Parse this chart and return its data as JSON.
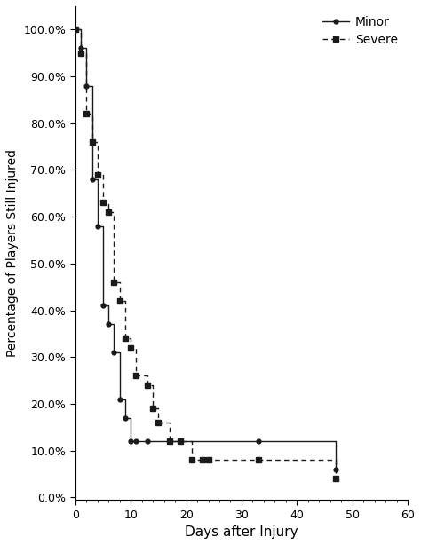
{
  "title": "",
  "xlabel": "Days after Injury",
  "ylabel": "Percentage of Players Still Injured",
  "xlim": [
    0,
    60
  ],
  "ylim": [
    0.0,
    1.05
  ],
  "yticks": [
    0.0,
    0.1,
    0.2,
    0.3,
    0.4,
    0.5,
    0.6,
    0.7,
    0.8,
    0.9,
    1.0
  ],
  "ytick_labels": [
    "0.0%",
    "10.0%",
    "20.0%",
    "30.0%",
    "40.0%",
    "50.0%",
    "60.0%",
    "70.0%",
    "80.0%",
    "90.0%",
    "100.0%"
  ],
  "xticks": [
    0,
    10,
    20,
    30,
    40,
    50,
    60
  ],
  "minor_x": [
    0,
    1,
    2,
    3,
    4,
    5,
    6,
    7,
    8,
    9,
    10,
    11,
    13,
    33,
    47
  ],
  "minor_y": [
    1.0,
    0.96,
    0.88,
    0.68,
    0.58,
    0.41,
    0.37,
    0.31,
    0.21,
    0.17,
    0.12,
    0.12,
    0.12,
    0.12,
    0.06
  ],
  "severe_x": [
    0,
    1,
    2,
    3,
    4,
    5,
    6,
    7,
    8,
    9,
    10,
    11,
    13,
    14,
    15,
    17,
    19,
    21,
    23,
    24,
    33,
    47
  ],
  "severe_y": [
    1.0,
    0.95,
    0.82,
    0.76,
    0.69,
    0.63,
    0.61,
    0.46,
    0.42,
    0.34,
    0.32,
    0.26,
    0.24,
    0.19,
    0.16,
    0.12,
    0.12,
    0.08,
    0.08,
    0.08,
    0.08,
    0.04
  ],
  "line_color": "#1a1a1a",
  "bg_color": "#ffffff",
  "figsize": [
    4.74,
    6.14
  ],
  "dpi": 100
}
